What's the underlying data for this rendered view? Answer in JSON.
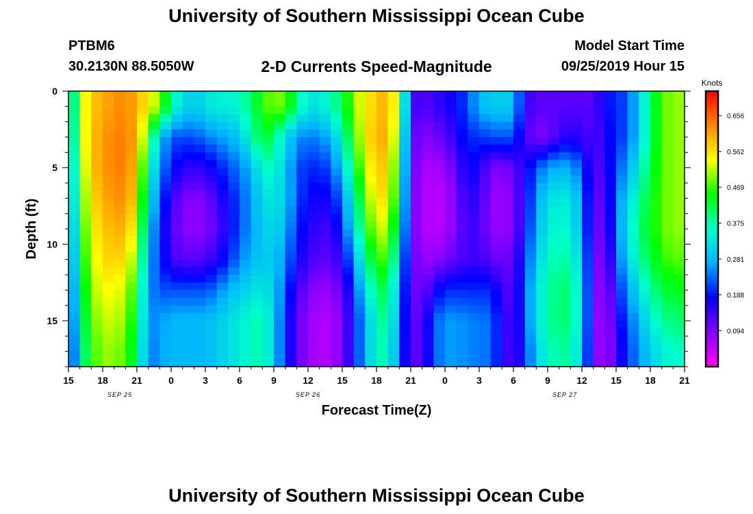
{
  "header": {
    "title": "University of Southern Mississippi Ocean Cube",
    "station_id": "PTBM6",
    "station_coords": "30.2130N 88.5050W",
    "subtitle": "2-D Currents Speed-Magnitude",
    "model_start_label": "Model Start Time",
    "model_start_value": "09/25/2019 Hour 15"
  },
  "footer": {
    "title": "University of Southern Mississippi Ocean Cube"
  },
  "chart_data": {
    "type": "heatmap",
    "title": "2-D Currents Speed-Magnitude",
    "xlabel": "Forecast Time(Z)",
    "ylabel": "Depth (ft)",
    "x_tick_labels": [
      "15",
      "18",
      "21",
      "0",
      "3",
      "6",
      "9",
      "12",
      "15",
      "18",
      "21",
      "0",
      "3",
      "6",
      "9",
      "12",
      "15",
      "18",
      "21"
    ],
    "date_labels": [
      {
        "label": "SEP 25",
        "hour_index": 4.5
      },
      {
        "label": "SEP 26",
        "hour_index": 21
      },
      {
        "label": "SEP 27",
        "hour_index": 43.5
      }
    ],
    "xlim_hours": [
      0,
      54
    ],
    "y_ticks": [
      0,
      5,
      10,
      15
    ],
    "ylim": [
      0,
      18
    ],
    "colorbar": {
      "label": "Knots",
      "ticks": [
        0.094,
        0.188,
        0.281,
        0.375,
        0.469,
        0.562,
        0.656
      ],
      "range": [
        0.0,
        0.72
      ],
      "colors": [
        "#ff00ff",
        "#8800ff",
        "#0000ff",
        "#00b0ff",
        "#00ffcc",
        "#00ff00",
        "#ffff00",
        "#ff8800",
        "#ff0000"
      ]
    },
    "depth_knots": [
      0,
      1,
      3,
      5,
      7,
      9,
      11,
      13,
      15,
      17,
      18
    ],
    "time_knots": [
      0,
      1,
      2,
      3,
      4,
      5,
      6,
      7,
      8,
      9,
      10,
      11,
      12,
      13,
      14,
      15,
      16,
      17,
      18,
      19,
      20,
      21,
      22,
      23,
      24,
      25,
      26,
      27,
      28,
      29,
      30,
      31,
      32,
      33,
      34,
      35,
      36,
      37,
      38,
      39,
      40,
      41,
      42,
      43,
      44,
      45,
      46,
      47,
      48,
      49,
      50,
      51,
      52,
      53,
      54
    ],
    "speed_grid_knots": [
      [
        0.28,
        0.5,
        0.58,
        0.6,
        0.62,
        0.63,
        0.6,
        0.55,
        0.5,
        0.38,
        0.32,
        0.3,
        0.32,
        0.35,
        0.34,
        0.36,
        0.4,
        0.46,
        0.5,
        0.48,
        0.4,
        0.32,
        0.34,
        0.36,
        0.42,
        0.5,
        0.55,
        0.58,
        0.6,
        0.5,
        0.15,
        0.12,
        0.14,
        0.16,
        0.18,
        0.22,
        0.28,
        0.3,
        0.3,
        0.3,
        0.15,
        0.12,
        0.12,
        0.12,
        0.12,
        0.12,
        0.12,
        0.18,
        0.2,
        0.22,
        0.3,
        0.4,
        0.48,
        0.5,
        0.5
      ],
      [
        0.28,
        0.5,
        0.58,
        0.6,
        0.62,
        0.63,
        0.6,
        0.55,
        0.5,
        0.38,
        0.32,
        0.3,
        0.32,
        0.35,
        0.34,
        0.36,
        0.4,
        0.46,
        0.5,
        0.48,
        0.4,
        0.32,
        0.34,
        0.36,
        0.42,
        0.5,
        0.55,
        0.58,
        0.6,
        0.5,
        0.15,
        0.12,
        0.14,
        0.16,
        0.18,
        0.22,
        0.28,
        0.3,
        0.3,
        0.3,
        0.15,
        0.12,
        0.12,
        0.12,
        0.12,
        0.12,
        0.12,
        0.18,
        0.2,
        0.22,
        0.3,
        0.4,
        0.48,
        0.5,
        0.5
      ],
      [
        0.26,
        0.5,
        0.58,
        0.62,
        0.63,
        0.64,
        0.6,
        0.45,
        0.3,
        0.22,
        0.22,
        0.22,
        0.24,
        0.26,
        0.27,
        0.3,
        0.36,
        0.44,
        0.4,
        0.32,
        0.26,
        0.24,
        0.25,
        0.28,
        0.36,
        0.46,
        0.55,
        0.6,
        0.6,
        0.46,
        0.13,
        0.09,
        0.1,
        0.12,
        0.16,
        0.2,
        0.2,
        0.22,
        0.22,
        0.22,
        0.14,
        0.09,
        0.1,
        0.14,
        0.16,
        0.15,
        0.12,
        0.16,
        0.2,
        0.22,
        0.3,
        0.4,
        0.48,
        0.5,
        0.5
      ],
      [
        0.24,
        0.48,
        0.58,
        0.62,
        0.63,
        0.64,
        0.58,
        0.38,
        0.26,
        0.19,
        0.16,
        0.14,
        0.16,
        0.18,
        0.22,
        0.24,
        0.28,
        0.36,
        0.36,
        0.3,
        0.22,
        0.2,
        0.2,
        0.22,
        0.3,
        0.42,
        0.52,
        0.58,
        0.58,
        0.42,
        0.12,
        0.07,
        0.06,
        0.08,
        0.12,
        0.18,
        0.16,
        0.1,
        0.09,
        0.12,
        0.16,
        0.22,
        0.26,
        0.28,
        0.27,
        0.22,
        0.12,
        0.14,
        0.22,
        0.26,
        0.34,
        0.42,
        0.48,
        0.5,
        0.5
      ],
      [
        0.22,
        0.46,
        0.56,
        0.6,
        0.62,
        0.63,
        0.56,
        0.34,
        0.22,
        0.15,
        0.1,
        0.09,
        0.1,
        0.14,
        0.18,
        0.22,
        0.26,
        0.32,
        0.34,
        0.3,
        0.22,
        0.18,
        0.16,
        0.18,
        0.24,
        0.36,
        0.48,
        0.56,
        0.56,
        0.4,
        0.12,
        0.06,
        0.05,
        0.06,
        0.1,
        0.16,
        0.14,
        0.09,
        0.07,
        0.1,
        0.16,
        0.26,
        0.32,
        0.34,
        0.33,
        0.26,
        0.12,
        0.12,
        0.24,
        0.3,
        0.38,
        0.44,
        0.48,
        0.5,
        0.5
      ],
      [
        0.2,
        0.44,
        0.54,
        0.58,
        0.6,
        0.6,
        0.52,
        0.3,
        0.2,
        0.13,
        0.09,
        0.08,
        0.09,
        0.12,
        0.17,
        0.22,
        0.26,
        0.3,
        0.32,
        0.28,
        0.2,
        0.16,
        0.14,
        0.14,
        0.2,
        0.32,
        0.44,
        0.52,
        0.52,
        0.36,
        0.12,
        0.06,
        0.05,
        0.06,
        0.1,
        0.14,
        0.13,
        0.09,
        0.07,
        0.1,
        0.17,
        0.28,
        0.34,
        0.36,
        0.35,
        0.27,
        0.12,
        0.1,
        0.24,
        0.32,
        0.4,
        0.44,
        0.48,
        0.5,
        0.5
      ],
      [
        0.18,
        0.42,
        0.52,
        0.56,
        0.58,
        0.56,
        0.48,
        0.28,
        0.2,
        0.14,
        0.12,
        0.12,
        0.13,
        0.15,
        0.2,
        0.24,
        0.28,
        0.3,
        0.3,
        0.25,
        0.18,
        0.14,
        0.12,
        0.12,
        0.16,
        0.26,
        0.38,
        0.46,
        0.48,
        0.3,
        0.12,
        0.08,
        0.08,
        0.1,
        0.12,
        0.14,
        0.14,
        0.12,
        0.1,
        0.12,
        0.2,
        0.3,
        0.36,
        0.38,
        0.37,
        0.3,
        0.12,
        0.08,
        0.22,
        0.3,
        0.38,
        0.42,
        0.46,
        0.48,
        0.48
      ],
      [
        0.16,
        0.4,
        0.5,
        0.54,
        0.54,
        0.52,
        0.44,
        0.26,
        0.22,
        0.22,
        0.22,
        0.22,
        0.22,
        0.24,
        0.28,
        0.3,
        0.32,
        0.34,
        0.3,
        0.22,
        0.14,
        0.1,
        0.08,
        0.08,
        0.12,
        0.2,
        0.32,
        0.4,
        0.42,
        0.26,
        0.12,
        0.1,
        0.16,
        0.2,
        0.2,
        0.2,
        0.2,
        0.2,
        0.14,
        0.12,
        0.22,
        0.32,
        0.38,
        0.4,
        0.4,
        0.32,
        0.12,
        0.06,
        0.18,
        0.26,
        0.32,
        0.38,
        0.42,
        0.44,
        0.44
      ],
      [
        0.15,
        0.38,
        0.48,
        0.52,
        0.52,
        0.5,
        0.42,
        0.25,
        0.26,
        0.28,
        0.28,
        0.28,
        0.28,
        0.3,
        0.32,
        0.34,
        0.36,
        0.38,
        0.3,
        0.2,
        0.12,
        0.08,
        0.06,
        0.06,
        0.1,
        0.18,
        0.28,
        0.36,
        0.4,
        0.24,
        0.12,
        0.12,
        0.22,
        0.26,
        0.26,
        0.25,
        0.24,
        0.24,
        0.16,
        0.12,
        0.22,
        0.32,
        0.38,
        0.4,
        0.4,
        0.32,
        0.12,
        0.05,
        0.16,
        0.22,
        0.28,
        0.34,
        0.38,
        0.4,
        0.4
      ],
      [
        0.14,
        0.36,
        0.46,
        0.5,
        0.5,
        0.48,
        0.4,
        0.24,
        0.26,
        0.28,
        0.28,
        0.28,
        0.28,
        0.3,
        0.32,
        0.34,
        0.36,
        0.38,
        0.3,
        0.2,
        0.12,
        0.08,
        0.06,
        0.06,
        0.1,
        0.18,
        0.28,
        0.36,
        0.38,
        0.22,
        0.12,
        0.12,
        0.22,
        0.26,
        0.26,
        0.25,
        0.24,
        0.24,
        0.16,
        0.12,
        0.2,
        0.3,
        0.36,
        0.38,
        0.38,
        0.3,
        0.12,
        0.05,
        0.14,
        0.2,
        0.26,
        0.3,
        0.34,
        0.36,
        0.36
      ],
      [
        0.14,
        0.36,
        0.46,
        0.5,
        0.5,
        0.48,
        0.4,
        0.24,
        0.26,
        0.28,
        0.28,
        0.28,
        0.28,
        0.3,
        0.32,
        0.34,
        0.36,
        0.38,
        0.3,
        0.2,
        0.12,
        0.08,
        0.06,
        0.06,
        0.1,
        0.18,
        0.28,
        0.36,
        0.38,
        0.22,
        0.12,
        0.12,
        0.22,
        0.26,
        0.26,
        0.25,
        0.24,
        0.24,
        0.16,
        0.12,
        0.2,
        0.3,
        0.36,
        0.38,
        0.38,
        0.3,
        0.12,
        0.05,
        0.14,
        0.2,
        0.26,
        0.3,
        0.34,
        0.36,
        0.36
      ]
    ]
  }
}
